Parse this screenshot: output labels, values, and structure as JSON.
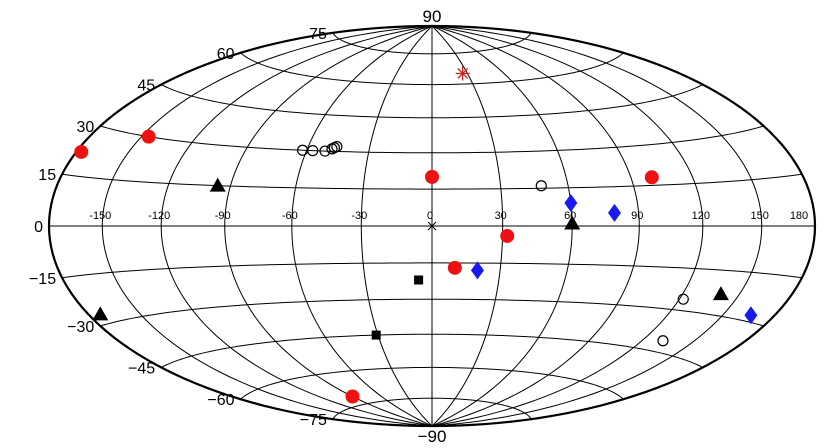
{
  "chart_data": {
    "type": "scatter",
    "projection": "hammer-aitoff",
    "x_range": [
      -180,
      180
    ],
    "y_range": [
      -90,
      90
    ],
    "grid": true,
    "grid_step_lon": 30,
    "grid_step_lat": 15,
    "lon_tick_labels": [
      "-150",
      "-120",
      "-90",
      "-60",
      "-30",
      "0",
      "30",
      "60",
      "90",
      "120",
      "150",
      "180"
    ],
    "lat_tick_labels": [
      "75",
      "60",
      "45",
      "30",
      "15",
      "0",
      "−15",
      "−30",
      "−45",
      "−60",
      "−75"
    ],
    "north_pole_label": "90",
    "south_pole_label": "−90",
    "series": [
      {
        "marker": "circle-filled",
        "color": "#ee1111",
        "points": [
          [
            -177,
            22
          ],
          [
            -146,
            30
          ],
          [
            0,
            20
          ],
          [
            100,
            18
          ],
          [
            32,
            -4
          ],
          [
            10,
            -17
          ],
          [
            -90,
            -71
          ]
        ]
      },
      {
        "marker": "circle-open",
        "color": "#000000",
        "points": [
          [
            -62,
            30
          ],
          [
            -57,
            30
          ],
          [
            -51,
            30
          ],
          [
            -48,
            31
          ],
          [
            -47,
            31.5
          ],
          [
            -46,
            32
          ],
          [
            48,
            16
          ],
          [
            122,
            -26
          ],
          [
            132,
            -41
          ]
        ]
      },
      {
        "marker": "triangle",
        "color": "#000000",
        "points": [
          [
            -96,
            15
          ],
          [
            60,
            1
          ],
          [
            -173,
            -27
          ],
          [
            140,
            -23
          ]
        ]
      },
      {
        "marker": "diamond",
        "color": "#1a1aee",
        "points": [
          [
            60,
            9
          ],
          [
            79,
            5
          ],
          [
            20,
            -18
          ],
          [
            166,
            -28
          ]
        ]
      },
      {
        "marker": "square",
        "color": "#000000",
        "points": [
          [
            -6,
            -22
          ],
          [
            -31,
            -45
          ]
        ]
      },
      {
        "marker": "asterisk",
        "color": "#cc2222",
        "points": [
          [
            26,
            65
          ]
        ]
      },
      {
        "marker": "x",
        "color": "#000000",
        "points": [
          [
            0,
            0
          ]
        ]
      }
    ]
  }
}
